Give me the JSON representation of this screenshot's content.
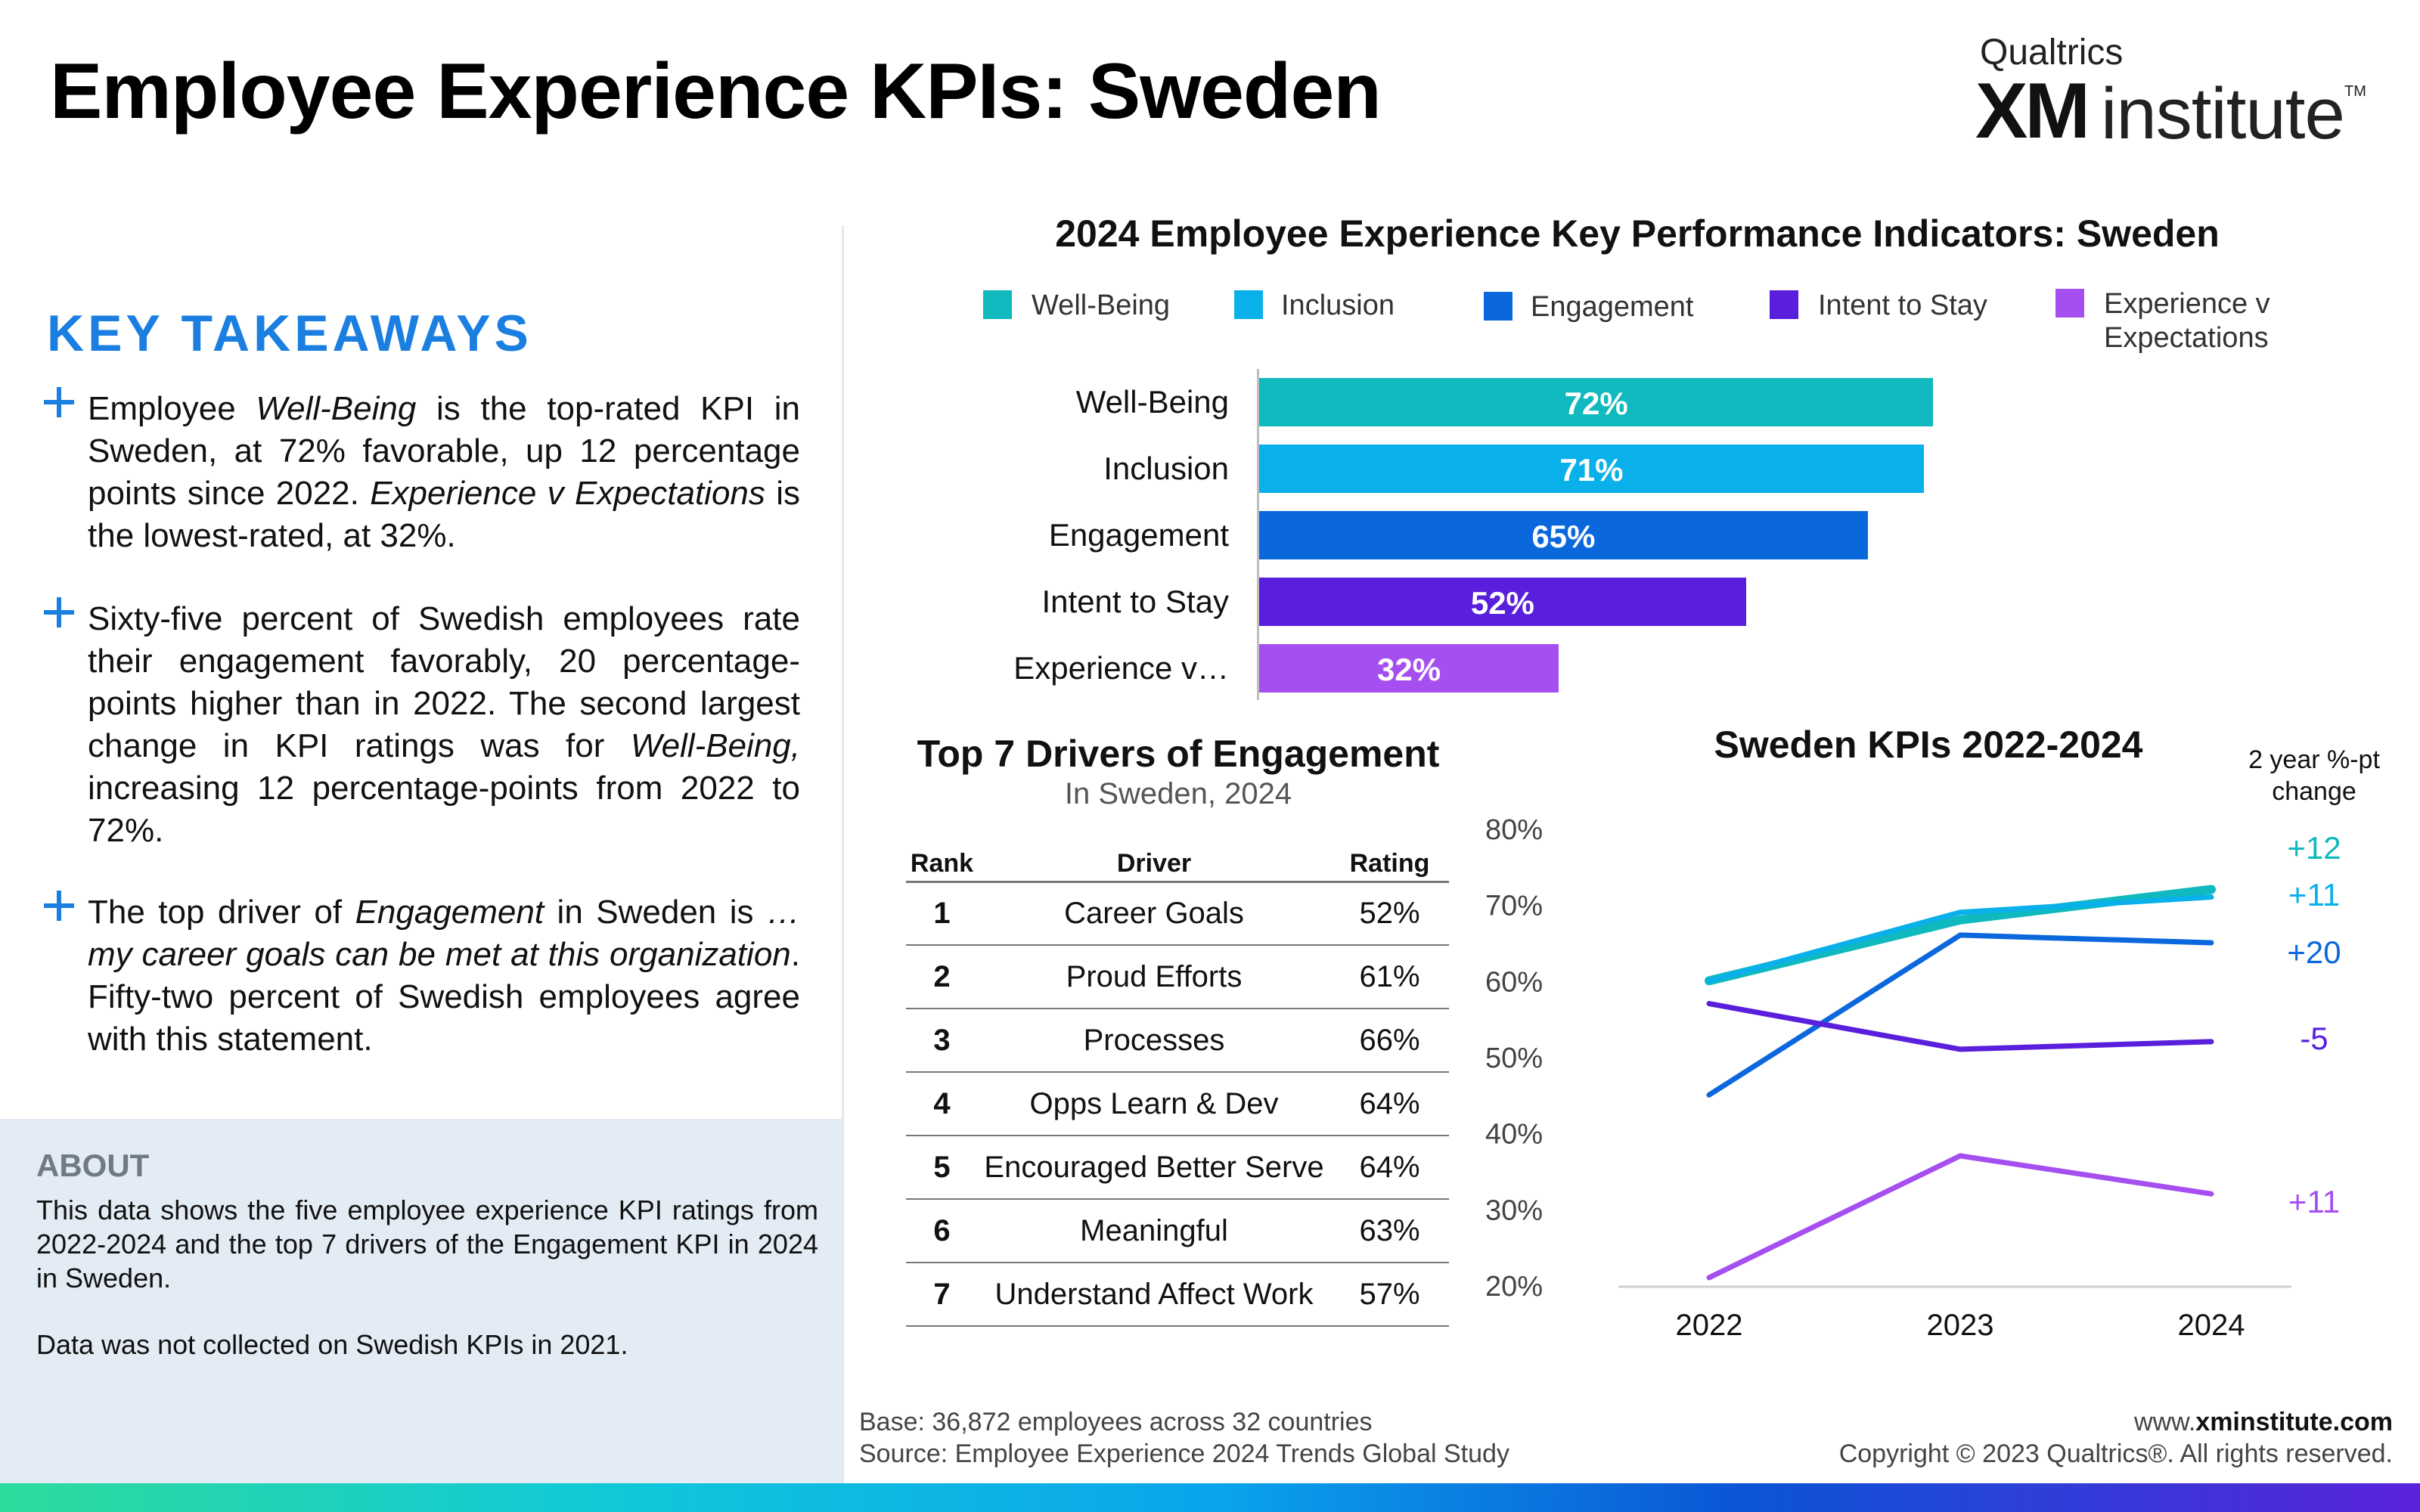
{
  "page": {
    "title": "Employee Experience KPIs: Sweden"
  },
  "logo": {
    "brand": "Qualtrics",
    "xm": "XM",
    "institute": "institute",
    "tm": "TM"
  },
  "takeaways": {
    "heading": "KEY TAKEAWAYS",
    "items": [
      {
        "html": "Employee <i>Well-Being</i> is the top-rated KPI in Sweden, at 72% favorable, up 12 percentage points since 2022. <i>Experience v Expectations</i> is the lowest-rated, at 32%."
      },
      {
        "html": "Sixty-five percent of Swedish employees rate their engagement favorably, 20 percentage-points higher than in 2022. The second largest change in KPI ratings was for <i>Well-Being,</i> increasing 12 percentage-points from 2022 to 72%."
      },
      {
        "html": "The top driver of <i>Engagement</i> in Sweden is <i>…my career goals can be met at this organization</i>. Fifty-two percent of Swedish employees agree with this statement."
      }
    ]
  },
  "about": {
    "title": "ABOUT",
    "text1": "This data shows the five employee experience KPI ratings from 2022-2024 and the top 7 drivers of the Engagement KPI in 2024 in Sweden.",
    "text2": "Data was not collected on Swedish KPIs in 2021."
  },
  "colors": {
    "well_being": "#0fb9bd",
    "inclusion": "#0ab0ea",
    "engagement": "#0b68dc",
    "intent_to_stay": "#5a1fdc",
    "experience_v_expectations": "#a64ff0",
    "accent": "#1a7fe0"
  },
  "footer": {
    "base": "Base: 36,872 employees across 32 countries",
    "source": "Source: Employee Experience 2024 Trends Global Study",
    "site_prefix": "www.",
    "site_bold": "xminstitute",
    "site_suffix": ".com",
    "copyright": "Copyright © 2023 Qualtrics®. All rights reserved."
  },
  "chart_data": [
    {
      "type": "bar",
      "orientation": "horizontal",
      "title": "2024 Employee Experience Key Performance Indicators: Sweden",
      "legend": [
        "Well-Being",
        "Inclusion",
        "Engagement",
        "Intent to Stay",
        "Experience v Expectations"
      ],
      "legend_display": [
        "Well-Being",
        "Inclusion",
        "Engagement",
        "Intent to Stay",
        "Experience v\nExpectations"
      ],
      "categories": [
        "Well-Being",
        "Inclusion",
        "Engagement",
        "Intent to Stay",
        "Experience v…"
      ],
      "values": [
        72,
        71,
        65,
        52,
        32
      ],
      "value_labels": [
        "72%",
        "71%",
        "65%",
        "52%",
        "32%"
      ],
      "xlim": [
        0,
        100
      ],
      "legend_position": "top"
    },
    {
      "type": "table",
      "title": "Top 7 Drivers of Engagement",
      "subtitle": "In Sweden, 2024",
      "columns": [
        "Rank",
        "Driver",
        "Rating"
      ],
      "rows": [
        [
          "1",
          "Career Goals",
          "52%"
        ],
        [
          "2",
          "Proud Efforts",
          "61%"
        ],
        [
          "3",
          "Processes",
          "66%"
        ],
        [
          "4",
          "Opps Learn & Dev",
          "64%"
        ],
        [
          "5",
          "Encouraged Better Serve",
          "64%"
        ],
        [
          "6",
          "Meaningful",
          "63%"
        ],
        [
          "7",
          "Understand Affect Work",
          "57%"
        ]
      ]
    },
    {
      "type": "line",
      "title": "Sweden KPIs 2022-2024",
      "x": [
        "2022",
        "2023",
        "2024"
      ],
      "ylim": [
        20,
        80
      ],
      "yticks": [
        "20%",
        "30%",
        "40%",
        "50%",
        "60%",
        "70%",
        "80%"
      ],
      "ytick_values": [
        20,
        30,
        40,
        50,
        60,
        70,
        80
      ],
      "change_header": "2 year %-pt change",
      "series": [
        {
          "name": "Well-Being",
          "values": [
            60,
            68,
            72
          ],
          "change": "+12",
          "width": 12
        },
        {
          "name": "Inclusion",
          "values": [
            60,
            69,
            71
          ],
          "change": "+11",
          "width": 7
        },
        {
          "name": "Engagement",
          "values": [
            45,
            66,
            65
          ],
          "change": "+20",
          "width": 7
        },
        {
          "name": "Intent to Stay",
          "values": [
            57,
            51,
            52
          ],
          "change": "-5",
          "width": 7
        },
        {
          "name": "Experience v Expectations",
          "values": [
            21,
            37,
            32
          ],
          "change": "+11",
          "width": 7
        }
      ]
    }
  ]
}
